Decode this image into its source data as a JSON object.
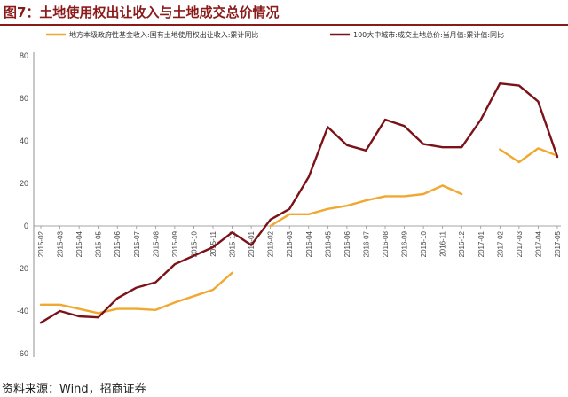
{
  "header": {
    "title": "图7：土地使用权出让收入与土地成交总价情况"
  },
  "footer": {
    "source": "资料来源：Wind，招商证券"
  },
  "chart_data": {
    "type": "line",
    "categories": [
      "2015-02",
      "2015-03",
      "2015-04",
      "2015-05",
      "2015-06",
      "2015-07",
      "2015-08",
      "2015-09",
      "2015-10",
      "2015-11",
      "2015-12",
      "2016-01",
      "2016-02",
      "2016-03",
      "2016-04",
      "2016-05",
      "2016-06",
      "2016-07",
      "2016-08",
      "2016-09",
      "2016-10",
      "2016-11",
      "2016-12",
      "2017-01",
      "2017-02",
      "2017-03",
      "2017-04",
      "2017-05"
    ],
    "ylim": [
      -60,
      80
    ],
    "yticks": [
      -60,
      -40,
      -20,
      0,
      20,
      40,
      60,
      80
    ],
    "grid": false,
    "legend_position": "top",
    "series": [
      {
        "name": "地方本级政府性基金收入:国有土地使用权出让收入:累计同比",
        "color": "#f0a830",
        "values": [
          -37,
          -37,
          -39,
          -41,
          -39,
          -39,
          -39.5,
          -36,
          -33,
          -30,
          -22,
          null,
          0,
          5.5,
          5.5,
          8,
          9.5,
          12,
          14,
          14,
          15,
          19,
          15,
          null,
          36,
          30,
          36.5,
          33
        ]
      },
      {
        "name": "100大中城市:成交土地总价:当月值:累计值:同比",
        "color": "#7b1218",
        "values": [
          -45.5,
          -40,
          -42.5,
          -43,
          -34,
          -29,
          -26.5,
          -18,
          -14,
          -10,
          -3,
          -9,
          3,
          8,
          23,
          46.5,
          38,
          35.5,
          50,
          47,
          38.5,
          37,
          37,
          50,
          67,
          66,
          58.5,
          32.5
        ]
      }
    ]
  }
}
